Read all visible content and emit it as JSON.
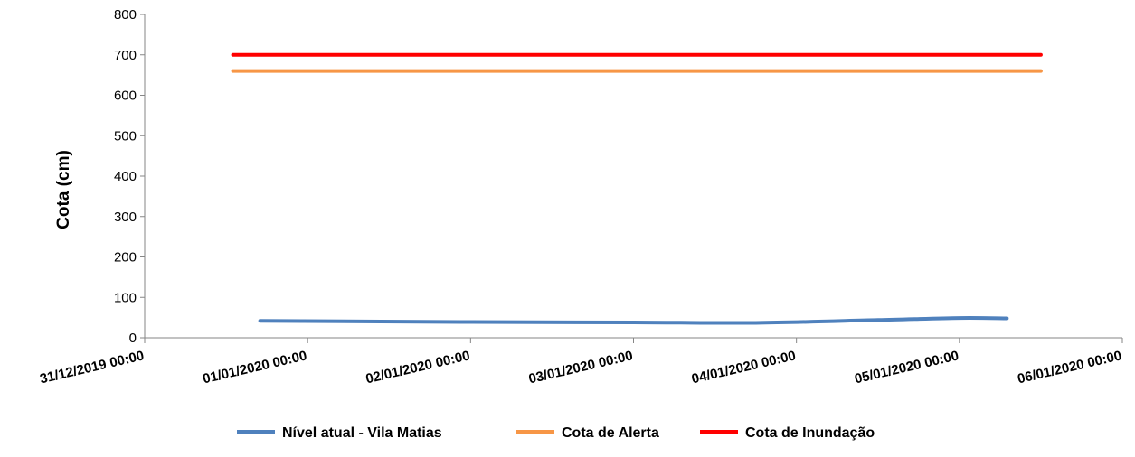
{
  "chart_data": {
    "type": "line",
    "ylabel": "Cota (cm)",
    "xlabel": "",
    "ylim": [
      0,
      800
    ],
    "yticks": [
      0,
      100,
      200,
      300,
      400,
      500,
      600,
      700,
      800
    ],
    "x_ticks": [
      "31/12/2019 00:00",
      "01/01/2020 00:00",
      "02/01/2020 00:00",
      "03/01/2020 00:00",
      "04/01/2020 00:00",
      "05/01/2020 00:00",
      "06/01/2020 00:00"
    ],
    "legend_position": "bottom",
    "grid": false,
    "series": [
      {
        "name": "Nível atual - Vila Matias",
        "color": "#4f81bd",
        "smooth": true,
        "points": [
          {
            "x": "31/12/2019 17:00",
            "y": 42
          },
          {
            "x": "02/01/2020 00:00",
            "y": 39
          },
          {
            "x": "03/01/2020 00:00",
            "y": 38
          },
          {
            "x": "03/01/2020 18:00",
            "y": 37
          },
          {
            "x": "04/01/2020 12:00",
            "y": 44
          },
          {
            "x": "05/01/2020 00:00",
            "y": 49
          },
          {
            "x": "05/01/2020 07:00",
            "y": 48
          }
        ]
      },
      {
        "name": "Cota de Alerta",
        "color": "#f79646",
        "smooth": false,
        "points": [
          {
            "x": "31/12/2019 13:00",
            "y": 660
          },
          {
            "x": "05/01/2020 12:00",
            "y": 660
          }
        ]
      },
      {
        "name": "Cota de Inundação",
        "color": "#ff0000",
        "smooth": false,
        "points": [
          {
            "x": "31/12/2019 13:00",
            "y": 700
          },
          {
            "x": "05/01/2020 12:00",
            "y": 700
          }
        ]
      }
    ]
  }
}
